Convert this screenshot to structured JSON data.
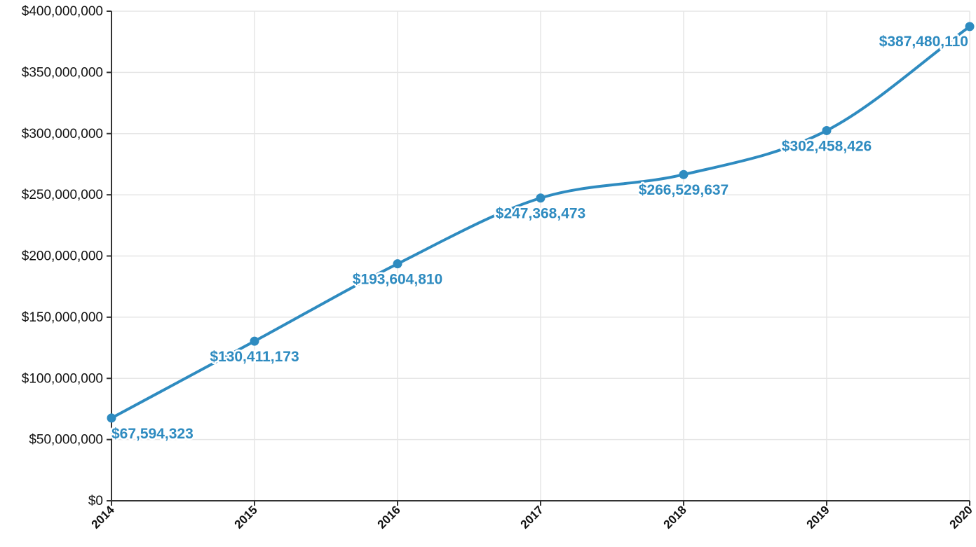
{
  "colors": {
    "series": "#2e8bc0",
    "axis": "#333333",
    "grid": "#e6e6e6"
  },
  "chart_data": {
    "type": "line",
    "title": "",
    "xlabel": "",
    "ylabel": "",
    "x": [
      "2014",
      "2015",
      "2016",
      "2017",
      "2018",
      "2019",
      "2020"
    ],
    "series": [
      {
        "values": [
          67594323,
          130411173,
          193604810,
          247368473,
          266529637,
          302458426,
          387480110
        ]
      }
    ],
    "data_labels": [
      "$67,594,323",
      "$130,411,173",
      "$193,604,810",
      "$247,368,473",
      "$266,529,637",
      "$302,458,426",
      "$387,480,110"
    ],
    "y_ticks": [
      0,
      50000000,
      100000000,
      150000000,
      200000000,
      250000000,
      300000000,
      350000000,
      400000000
    ],
    "y_tick_labels": [
      "$0",
      "$50,000,000",
      "$100,000,000",
      "$150,000,000",
      "$200,000,000",
      "$250,000,000",
      "$300,000,000",
      "$350,000,000",
      "$400,000,000"
    ],
    "ylim": [
      0,
      400000000
    ],
    "grid": true,
    "legend": "none",
    "line_style": "smooth",
    "markers": true
  }
}
